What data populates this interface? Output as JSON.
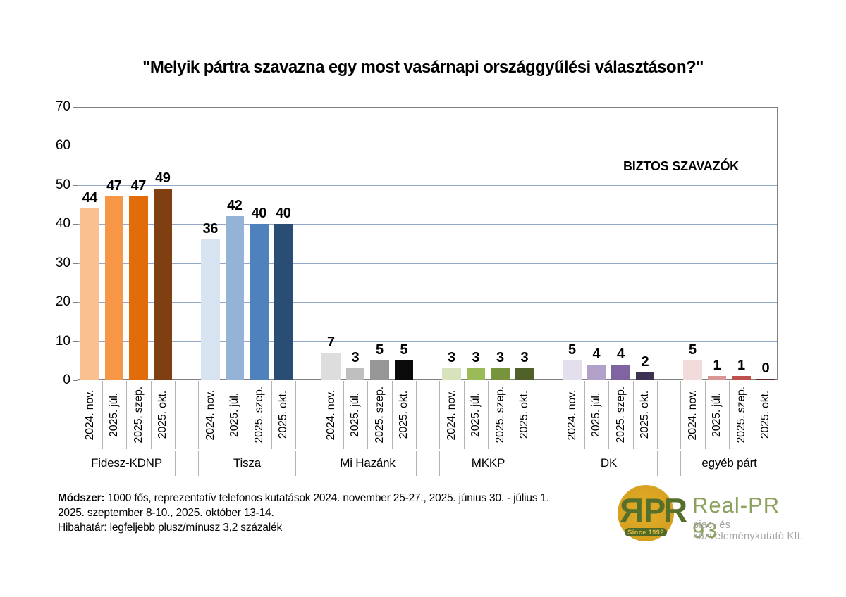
{
  "title": "\"Melyik pártra szavazna egy most vasárnapi országgyűlési választáson?\"",
  "chart_data": {
    "type": "bar",
    "title": "\"Melyik pártra szavazna egy most vasárnapi országgyűlési választáson?\"",
    "annotation": "BIZTOS SZAVAZÓK",
    "categories": [
      "2024. nov.",
      "2025. júl.",
      "2025. szep.",
      "2025. okt."
    ],
    "groups": [
      {
        "label": "Fidesz-KDNP",
        "values": [
          44,
          47,
          47,
          49
        ],
        "colors": [
          "#FBC08F",
          "#F79646",
          "#E36C0A",
          "#7F3F10"
        ]
      },
      {
        "label": "Tisza",
        "values": [
          36,
          42,
          40,
          40
        ],
        "colors": [
          "#D7E3F1",
          "#95B3D7",
          "#4F81BD",
          "#2A4E73"
        ]
      },
      {
        "label": "Mi Hazánk",
        "values": [
          7,
          3,
          5,
          5
        ],
        "colors": [
          "#DDDDDD",
          "#BFBFBF",
          "#969696",
          "#0A0A0A"
        ]
      },
      {
        "label": "MKKP",
        "values": [
          3,
          3,
          3,
          3
        ],
        "colors": [
          "#D6E3BC",
          "#9BBB59",
          "#77933C",
          "#4F6128"
        ]
      },
      {
        "label": "DK",
        "values": [
          5,
          4,
          4,
          2
        ],
        "colors": [
          "#E4DFEC",
          "#B1A0C7",
          "#8064A2",
          "#3F3151"
        ]
      },
      {
        "label": "egyéb párt",
        "values": [
          5,
          1,
          1,
          0
        ],
        "colors": [
          "#F2DCDB",
          "#D99694",
          "#C0504D",
          "#632523"
        ]
      }
    ],
    "ylim": [
      0,
      70
    ],
    "yticks": [
      0,
      10,
      20,
      30,
      40,
      50,
      60,
      70
    ],
    "grid": true,
    "gridline_color": "#91A9C7",
    "legend_position": "none"
  },
  "footer": {
    "method_label": "Módszer:",
    "method_text": " 1000 fős, reprezentatív telefonos kutatások 2024. november 25-27., 2025. június 30. - július 1.",
    "line2": "2025. szeptember 8-10., 2025. október 13-14.",
    "line3": "Hibahatár: legfeljebb plusz/mínusz 3,2 százalék"
  },
  "logo": {
    "monogram_mirrored": "R",
    "monogram_rest": "PR",
    "name": "Real-PR 93",
    "subtitle": "piac- és közvéleménykutató Kft.",
    "since": "Since 1992",
    "gold": "#D7A01F",
    "green": "#56702C"
  }
}
